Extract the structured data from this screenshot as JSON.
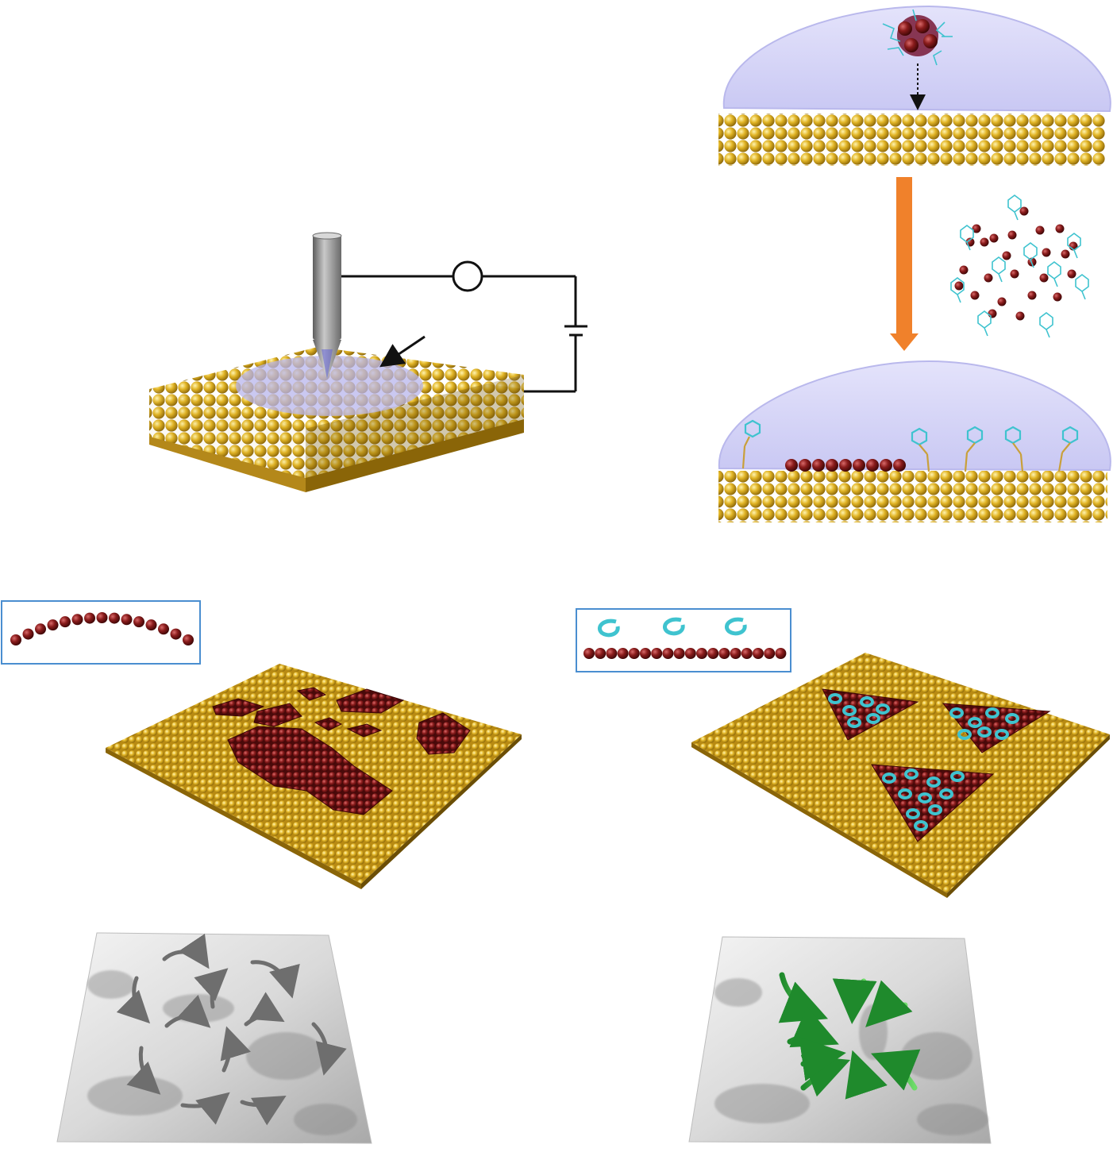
{
  "figure": {
    "panels": [
      {
        "id": "stm-setup",
        "description_visible_text": ""
      },
      {
        "id": "droplet-deposition-before"
      },
      {
        "id": "droplet-deposition-after"
      },
      {
        "id": "chain-island-surface"
      },
      {
        "id": "triangle-island-surface"
      },
      {
        "id": "energy-landscape-rotating"
      },
      {
        "id": "energy-landscape-converging"
      }
    ],
    "colors": {
      "gold_atom": "#e2b526",
      "gold_dark": "#a07a10",
      "ag_cluster": "#8a1c1c",
      "ag_dark": "#4a0a0a",
      "solvent": "#d5d4f6",
      "molecule": "#3fc3cf",
      "arrow_orange": "#f0812b",
      "green_arrow": "#2fa63c",
      "grey_arrow": "#7a7a7a",
      "surface_grey": "#dcdcdc",
      "inset_border": "#4a8ed0",
      "tip_grey": "#8a8a8a",
      "circuit": "#111111"
    },
    "icons": [
      "stm-tip-icon",
      "battery-icon",
      "ammeter-icon",
      "orange-down-arrow-icon"
    ]
  }
}
